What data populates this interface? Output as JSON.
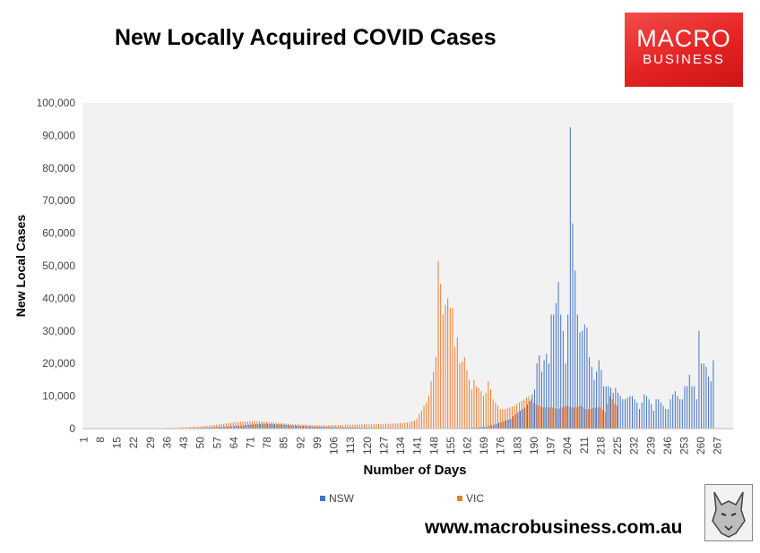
{
  "header": {
    "title": "New Locally Acquired COVID Cases",
    "logo_line1": "MACRO",
    "logo_line2": "BUSINESS"
  },
  "footer": {
    "url": "www.macrobusiness.com.au"
  },
  "colors": {
    "nsw": "#4472c4",
    "vic": "#ed7d31",
    "plot_bg": "#f2f2f2",
    "logo": "#e52323"
  },
  "chart_data": {
    "type": "bar",
    "xlabel": "Number of Days",
    "ylabel": "New Local Cases",
    "ylim": [
      0,
      100000
    ],
    "y_ticks": [
      0,
      10000,
      20000,
      30000,
      40000,
      50000,
      60000,
      70000,
      80000,
      90000,
      100000
    ],
    "y_tick_labels": [
      "0",
      "10,000",
      "20,000",
      "30,000",
      "40,000",
      "50,000",
      "60,000",
      "70,000",
      "80,000",
      "90,000",
      "100,000"
    ],
    "x_range": [
      1,
      273
    ],
    "x_tick_labels": [
      "1",
      "8",
      "15",
      "22",
      "29",
      "36",
      "43",
      "50",
      "57",
      "64",
      "71",
      "78",
      "85",
      "92",
      "99",
      "106",
      "113",
      "120",
      "127",
      "134",
      "141",
      "148",
      "155",
      "162",
      "169",
      "176",
      "183",
      "190",
      "197",
      "204",
      "211",
      "218",
      "225",
      "232",
      "239",
      "246",
      "253",
      "260",
      "267"
    ],
    "legend": {
      "position": "bottom"
    },
    "grid": false,
    "series": [
      {
        "name": "NSW",
        "points": [
          [
            36,
            100
          ],
          [
            45,
            200
          ],
          [
            55,
            400
          ],
          [
            62,
            700
          ],
          [
            68,
            1000
          ],
          [
            72,
            1300
          ],
          [
            76,
            1500
          ],
          [
            80,
            1400
          ],
          [
            85,
            1200
          ],
          [
            90,
            900
          ],
          [
            96,
            700
          ],
          [
            102,
            500
          ],
          [
            108,
            400
          ],
          [
            115,
            300
          ],
          [
            122,
            200
          ],
          [
            130,
            150
          ],
          [
            140,
            100
          ],
          [
            150,
            100
          ],
          [
            160,
            200
          ],
          [
            165,
            300
          ],
          [
            170,
            600
          ],
          [
            173,
            1200
          ],
          [
            176,
            2000
          ],
          [
            178,
            2500
          ],
          [
            180,
            3000
          ],
          [
            182,
            4500
          ],
          [
            184,
            5500
          ],
          [
            186,
            6500
          ],
          [
            188,
            8500
          ],
          [
            189,
            10500
          ],
          [
            190,
            12000
          ],
          [
            191,
            20000
          ],
          [
            192,
            22500
          ],
          [
            193,
            17500
          ],
          [
            194,
            21000
          ],
          [
            195,
            23000
          ],
          [
            196,
            20000
          ],
          [
            197,
            35000
          ],
          [
            198,
            35000
          ],
          [
            199,
            38500
          ],
          [
            200,
            45000
          ],
          [
            201,
            35000
          ],
          [
            202,
            30000
          ],
          [
            203,
            20000
          ],
          [
            204,
            35000
          ],
          [
            205,
            92500
          ],
          [
            206,
            63000
          ],
          [
            207,
            48500
          ],
          [
            208,
            35000
          ],
          [
            209,
            29500
          ],
          [
            210,
            30000
          ],
          [
            211,
            32000
          ],
          [
            212,
            31000
          ],
          [
            213,
            22000
          ],
          [
            214,
            19000
          ],
          [
            215,
            15000
          ],
          [
            216,
            17500
          ],
          [
            217,
            21000
          ],
          [
            218,
            18000
          ],
          [
            219,
            13000
          ],
          [
            220,
            13000
          ],
          [
            221,
            13000
          ],
          [
            222,
            12500
          ],
          [
            223,
            11000
          ],
          [
            224,
            12500
          ],
          [
            225,
            11000
          ],
          [
            226,
            10000
          ],
          [
            227,
            9000
          ],
          [
            228,
            9000
          ],
          [
            229,
            9500
          ],
          [
            230,
            10000
          ],
          [
            231,
            10000
          ],
          [
            232,
            9000
          ],
          [
            233,
            8000
          ],
          [
            234,
            6000
          ],
          [
            235,
            8000
          ],
          [
            236,
            10500
          ],
          [
            237,
            10000
          ],
          [
            238,
            9000
          ],
          [
            239,
            7500
          ],
          [
            240,
            5500
          ],
          [
            241,
            9000
          ],
          [
            242,
            9000
          ],
          [
            243,
            8000
          ],
          [
            244,
            7000
          ],
          [
            245,
            6000
          ],
          [
            246,
            6000
          ],
          [
            247,
            9000
          ],
          [
            248,
            10500
          ],
          [
            249,
            11500
          ],
          [
            250,
            10000
          ],
          [
            251,
            9000
          ],
          [
            252,
            9000
          ],
          [
            253,
            13000
          ],
          [
            254,
            13000
          ],
          [
            255,
            16500
          ],
          [
            256,
            13000
          ],
          [
            257,
            13000
          ],
          [
            258,
            9000
          ],
          [
            259,
            30000
          ],
          [
            260,
            20000
          ],
          [
            261,
            20000
          ],
          [
            262,
            19000
          ],
          [
            263,
            16000
          ],
          [
            264,
            14500
          ],
          [
            265,
            21000
          ]
        ]
      },
      {
        "name": "VIC",
        "points": [
          [
            36,
            200
          ],
          [
            40,
            300
          ],
          [
            45,
            500
          ],
          [
            50,
            700
          ],
          [
            55,
            1000
          ],
          [
            58,
            1300
          ],
          [
            61,
            1600
          ],
          [
            64,
            1900
          ],
          [
            67,
            2100
          ],
          [
            70,
            2200
          ],
          [
            73,
            2300
          ],
          [
            76,
            2200
          ],
          [
            79,
            2000
          ],
          [
            82,
            1800
          ],
          [
            85,
            1600
          ],
          [
            88,
            1400
          ],
          [
            91,
            1300
          ],
          [
            94,
            1200
          ],
          [
            97,
            1100
          ],
          [
            100,
            1000
          ],
          [
            103,
            1000
          ],
          [
            106,
            1100
          ],
          [
            109,
            1100
          ],
          [
            112,
            1200
          ],
          [
            115,
            1200
          ],
          [
            118,
            1300
          ],
          [
            121,
            1300
          ],
          [
            124,
            1400
          ],
          [
            127,
            1400
          ],
          [
            130,
            1500
          ],
          [
            133,
            1600
          ],
          [
            136,
            1800
          ],
          [
            138,
            2000
          ],
          [
            140,
            2500
          ],
          [
            141,
            3000
          ],
          [
            142,
            4500
          ],
          [
            143,
            5500
          ],
          [
            144,
            7000
          ],
          [
            145,
            8000
          ],
          [
            146,
            10000
          ],
          [
            147,
            14500
          ],
          [
            148,
            17500
          ],
          [
            149,
            22000
          ],
          [
            150,
            51500
          ],
          [
            151,
            44500
          ],
          [
            152,
            35000
          ],
          [
            153,
            38000
          ],
          [
            154,
            40000
          ],
          [
            155,
            37000
          ],
          [
            156,
            37000
          ],
          [
            157,
            25000
          ],
          [
            158,
            28000
          ],
          [
            159,
            20000
          ],
          [
            160,
            20500
          ],
          [
            161,
            22000
          ],
          [
            162,
            18000
          ],
          [
            163,
            15000
          ],
          [
            164,
            12000
          ],
          [
            165,
            15000
          ],
          [
            166,
            13000
          ],
          [
            167,
            12500
          ],
          [
            168,
            11500
          ],
          [
            169,
            10000
          ],
          [
            170,
            11000
          ],
          [
            171,
            14500
          ],
          [
            172,
            12000
          ],
          [
            173,
            9000
          ],
          [
            174,
            8000
          ],
          [
            175,
            7000
          ],
          [
            176,
            6000
          ],
          [
            178,
            6000
          ],
          [
            180,
            6500
          ],
          [
            182,
            7000
          ],
          [
            184,
            8000
          ],
          [
            186,
            9000
          ],
          [
            188,
            10000
          ],
          [
            190,
            8000
          ],
          [
            192,
            7000
          ],
          [
            194,
            6500
          ],
          [
            196,
            6500
          ],
          [
            198,
            6500
          ],
          [
            200,
            6000
          ],
          [
            202,
            6500
          ],
          [
            204,
            7000
          ],
          [
            206,
            6500
          ],
          [
            208,
            6500
          ],
          [
            210,
            7000
          ],
          [
            212,
            6000
          ],
          [
            214,
            6000
          ],
          [
            216,
            6500
          ],
          [
            218,
            6500
          ],
          [
            220,
            5000
          ],
          [
            222,
            10000
          ],
          [
            223,
            9000
          ],
          [
            224,
            7500
          ],
          [
            225,
            7000
          ]
        ]
      }
    ]
  }
}
